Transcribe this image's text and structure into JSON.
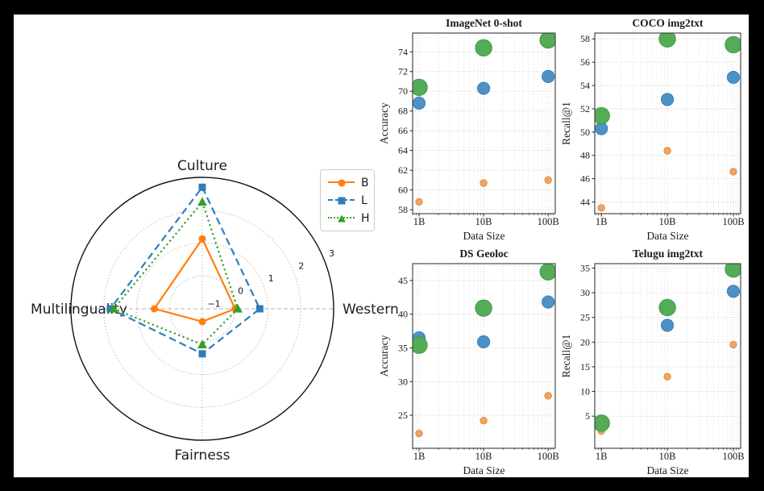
{
  "colors": {
    "frame_background": "#000000",
    "panel_background": "#ffffff",
    "text": "#1a1a1a",
    "grid": "#c8c8c8",
    "minor_grid": "#d9d9d9",
    "spine": "#3a3a3a"
  },
  "series_styles": {
    "B": {
      "color": "#FF7F0E",
      "scatter_fill": "#F2A45F",
      "scatter_edge": "#E08B40",
      "radius": 4.2,
      "line_style": "solid",
      "marker": "circle"
    },
    "L": {
      "color": "#2E7EBB",
      "scatter_fill": "#4C92C6",
      "scatter_edge": "#3A80B4",
      "radius": 7.6,
      "line_style": "dashed",
      "marker": "square"
    },
    "H": {
      "color": "#33A02C",
      "scatter_fill": "#55AC57",
      "scatter_edge": "#449947",
      "radius": 10.2,
      "line_style": "dotted",
      "marker": "triangle"
    }
  },
  "chart_data": [
    {
      "id": "radar-evals",
      "type": "radar",
      "categories": [
        "Culture",
        "Western",
        "Fairness",
        "Multilinguality"
      ],
      "r_ticks": [
        -1,
        0,
        1,
        2,
        3
      ],
      "r_grid_circles": [
        0,
        1,
        2
      ],
      "r_min": -1,
      "r_max": 3,
      "legend_position": "upper right",
      "series": [
        {
          "name": "B",
          "values": [
            1.13,
            0.0,
            -0.61,
            0.46
          ]
        },
        {
          "name": "L",
          "values": [
            2.7,
            0.75,
            0.37,
            1.8
          ]
        },
        {
          "name": "H",
          "values": [
            2.25,
            0.08,
            0.09,
            1.7
          ]
        }
      ]
    },
    {
      "id": "imagenet-0-shot",
      "type": "scatter",
      "title": "ImageNet 0-shot",
      "xlabel": "Data Size",
      "ylabel": "Accuracy",
      "x_log": true,
      "x": [
        1,
        10,
        100
      ],
      "xtick_labels": [
        "1B",
        "10B",
        "100B"
      ],
      "yticks": [
        58,
        60,
        62,
        64,
        66,
        68,
        70,
        72,
        74
      ],
      "ylim": [
        57.6,
        75.9
      ],
      "series": [
        {
          "name": "B",
          "values": [
            58.8,
            60.7,
            61.0
          ]
        },
        {
          "name": "L",
          "values": [
            68.8,
            70.3,
            71.5
          ]
        },
        {
          "name": "H",
          "values": [
            70.4,
            74.4,
            75.2
          ]
        }
      ]
    },
    {
      "id": "coco-img2txt",
      "type": "scatter",
      "title": "COCO img2txt",
      "xlabel": "Data Size",
      "ylabel": "Recall@1",
      "x_log": true,
      "x": [
        1,
        10,
        100
      ],
      "xtick_labels": [
        "1B",
        "10B",
        "100B"
      ],
      "yticks": [
        44,
        46,
        48,
        50,
        52,
        54,
        56,
        58
      ],
      "ylim": [
        43.0,
        58.5
      ],
      "series": [
        {
          "name": "B",
          "values": [
            43.5,
            48.4,
            46.6
          ]
        },
        {
          "name": "L",
          "values": [
            50.3,
            52.8,
            54.7
          ]
        },
        {
          "name": "H",
          "values": [
            51.4,
            58.0,
            57.5
          ]
        }
      ]
    },
    {
      "id": "ds-geoloc",
      "type": "scatter",
      "title": "DS Geoloc",
      "xlabel": "Data Size",
      "ylabel": "Accuracy",
      "x_log": true,
      "x": [
        1,
        10,
        100
      ],
      "xtick_labels": [
        "1B",
        "10B",
        "100B"
      ],
      "yticks": [
        25,
        30,
        35,
        40,
        45
      ],
      "ylim": [
        20.1,
        47.5
      ],
      "series": [
        {
          "name": "B",
          "values": [
            22.3,
            24.2,
            27.9
          ]
        },
        {
          "name": "L",
          "values": [
            36.5,
            35.9,
            41.8
          ]
        },
        {
          "name": "H",
          "values": [
            35.4,
            40.9,
            46.3
          ]
        }
      ]
    },
    {
      "id": "telugu-img2txt",
      "type": "scatter",
      "title": "Telugu img2txt",
      "xlabel": "Data Size",
      "ylabel": "Recall@1",
      "x_log": true,
      "x": [
        1,
        10,
        100
      ],
      "xtick_labels": [
        "1B",
        "10B",
        "100B"
      ],
      "yticks": [
        5,
        10,
        15,
        20,
        25,
        30,
        35
      ],
      "ylim": [
        -1.5,
        35.9
      ],
      "series": [
        {
          "name": "B",
          "values": [
            2.0,
            13.0,
            19.5
          ]
        },
        {
          "name": "L",
          "values": [
            3.4,
            23.4,
            30.3
          ]
        },
        {
          "name": "H",
          "values": [
            3.6,
            27.0,
            34.8
          ]
        }
      ]
    }
  ]
}
